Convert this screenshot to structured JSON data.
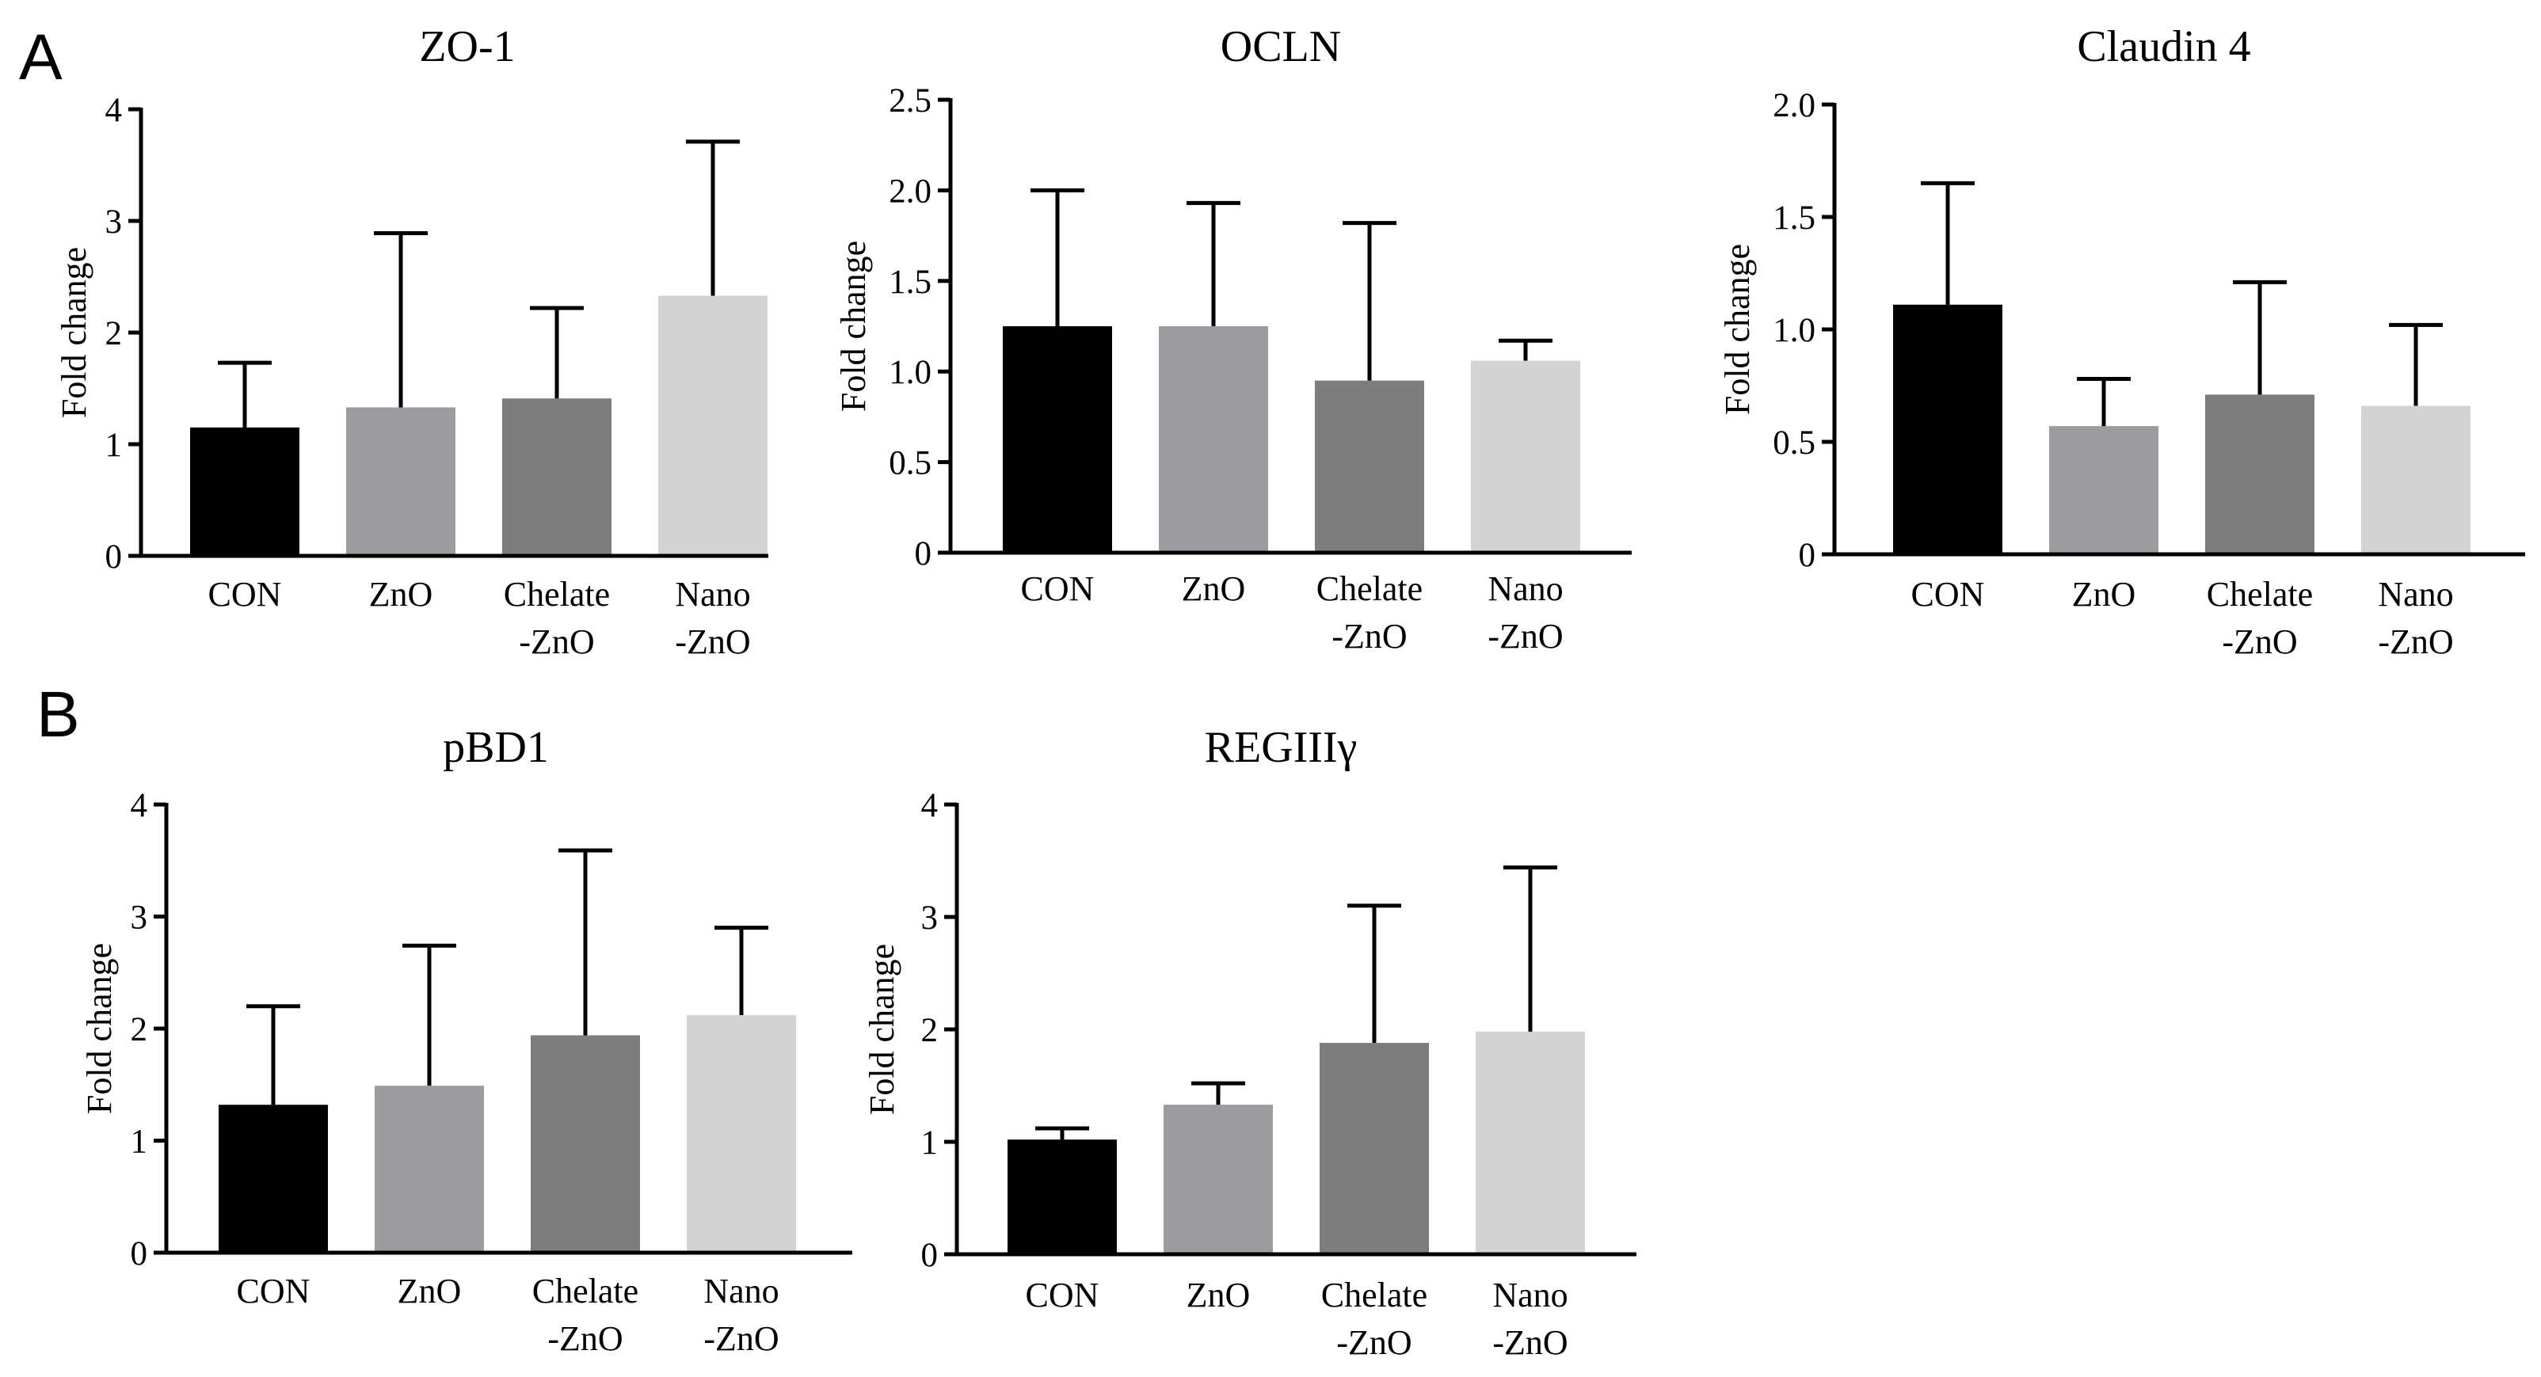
{
  "panels": {
    "A": "A",
    "B": "B"
  },
  "colors": {
    "CON": "#000000",
    "ZnO": "#9c9ca0",
    "Chelate-ZnO": "#7d7d7d",
    "Nano-ZnO": "#d3d3d3"
  },
  "chart_data": [
    {
      "type": "bar",
      "panel": "A",
      "title": "ZO-1",
      "ylabel": "Fold change",
      "categories": [
        [
          "CON"
        ],
        [
          "ZnO"
        ],
        [
          "Chelate",
          "-ZnO"
        ],
        [
          "Nano",
          "-ZnO"
        ]
      ],
      "values": [
        1.15,
        1.33,
        1.41,
        2.33
      ],
      "errors": [
        0.58,
        1.56,
        0.81,
        1.38
      ],
      "ylim": [
        0,
        4
      ],
      "yticks": [
        "0",
        "1",
        "2",
        "3",
        "4"
      ]
    },
    {
      "type": "bar",
      "panel": "A",
      "title": "OCLN",
      "ylabel": "Fold change",
      "categories": [
        [
          "CON"
        ],
        [
          "ZnO"
        ],
        [
          "Chelate",
          "-ZnO"
        ],
        [
          "Nano",
          "-ZnO"
        ]
      ],
      "values": [
        1.25,
        1.25,
        0.95,
        1.06
      ],
      "errors": [
        0.75,
        0.68,
        0.87,
        0.11
      ],
      "ylim": [
        0,
        2.5
      ],
      "yticks": [
        "0",
        "0.5",
        "1.0",
        "1.5",
        "2.0",
        "2.5"
      ]
    },
    {
      "type": "bar",
      "panel": "A",
      "title": "Claudin 4",
      "ylabel": "Fold change",
      "categories": [
        [
          "CON"
        ],
        [
          "ZnO"
        ],
        [
          "Chelate",
          "-ZnO"
        ],
        [
          "Nano",
          "-ZnO"
        ]
      ],
      "values": [
        1.11,
        0.57,
        0.71,
        0.66
      ],
      "errors": [
        0.54,
        0.21,
        0.5,
        0.36
      ],
      "ylim": [
        0,
        2.0
      ],
      "yticks": [
        "0",
        "0.5",
        "1.0",
        "1.5",
        "2.0"
      ]
    },
    {
      "type": "bar",
      "panel": "B",
      "title": "pBD1",
      "ylabel": "Fold change",
      "categories": [
        [
          "CON"
        ],
        [
          "ZnO"
        ],
        [
          "Chelate",
          "-ZnO"
        ],
        [
          "Nano",
          "-ZnO"
        ]
      ],
      "values": [
        1.32,
        1.49,
        1.94,
        2.12
      ],
      "errors": [
        0.88,
        1.25,
        1.65,
        0.78
      ],
      "ylim": [
        0,
        4
      ],
      "yticks": [
        "0",
        "1",
        "2",
        "3",
        "4"
      ]
    },
    {
      "type": "bar",
      "panel": "B",
      "title": "REGIIIγ",
      "ylabel": "Fold change",
      "categories": [
        [
          "CON"
        ],
        [
          "ZnO"
        ],
        [
          "Chelate",
          "-ZnO"
        ],
        [
          "Nano",
          "-ZnO"
        ]
      ],
      "values": [
        1.02,
        1.33,
        1.88,
        1.98
      ],
      "errors": [
        0.1,
        0.19,
        1.22,
        1.46
      ],
      "ylim": [
        0,
        4
      ],
      "yticks": [
        "0",
        "1",
        "2",
        "3",
        "4"
      ]
    }
  ]
}
